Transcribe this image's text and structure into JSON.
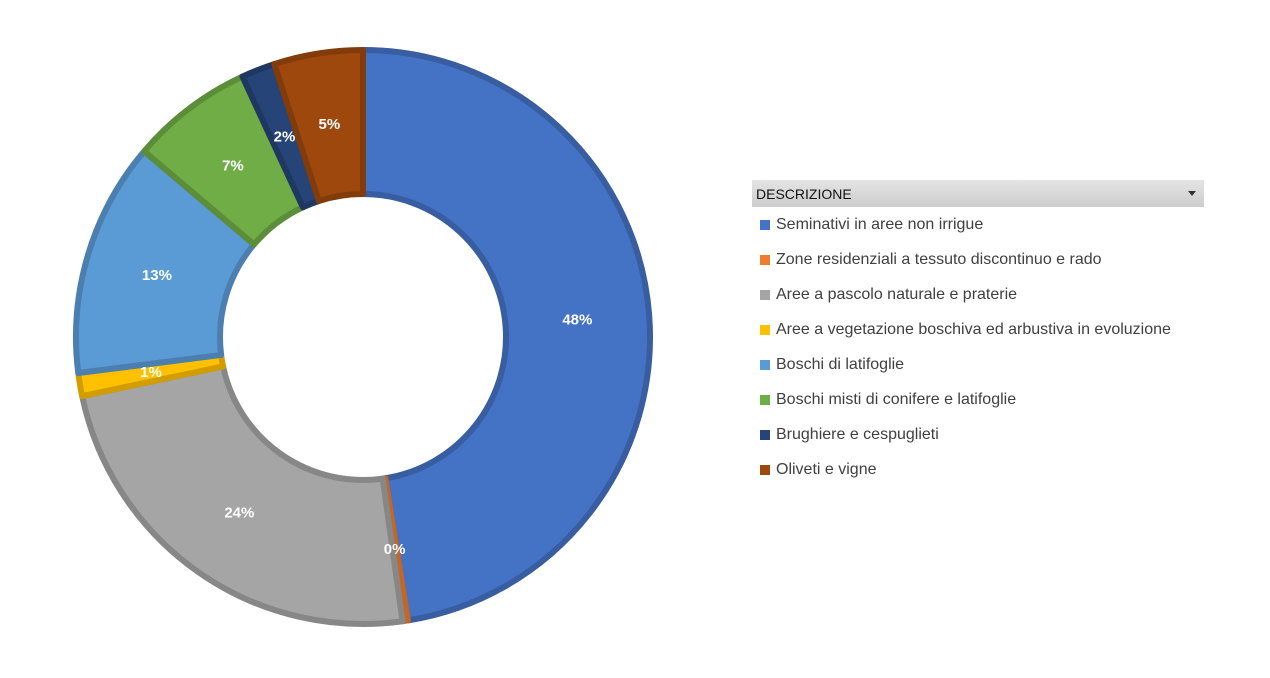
{
  "chart_data": {
    "type": "pie",
    "variant": "doughnut",
    "title": "",
    "legend_placement": "right",
    "legend_title": "DESCRIZIONE",
    "categories": [
      "Seminativi in aree non irrigue",
      "Zone residenziali a tessuto discontinuo e rado",
      "Aree a pascolo naturale e praterie",
      "Aree a vegetazione boschiva ed arbustiva in evoluzione",
      "Boschi di latifoglie",
      "Boschi misti di conifere e latifoglie",
      "Brughiere e cespuglieti",
      "Oliveti e vigne"
    ],
    "values": [
      47.5,
      0.3,
      23.9,
      1.3,
      13.2,
      6.9,
      1.9,
      5.0
    ],
    "labels": [
      "48%",
      "0%",
      "24%",
      "1%",
      "13%",
      "7%",
      "2%",
      "5%"
    ],
    "colors": [
      "#4472C4",
      "#ED7D31",
      "#A5A5A5",
      "#FFC000",
      "#5B9BD5",
      "#70AD47",
      "#264478",
      "#9E480E"
    ]
  }
}
